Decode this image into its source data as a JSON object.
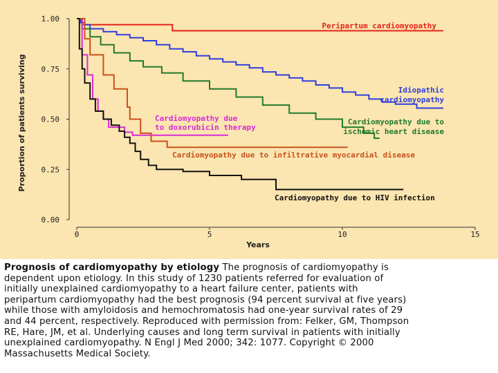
{
  "chart_data": {
    "type": "line",
    "step": true,
    "xlabel": "Years",
    "ylabel": "Proportion of patients surviving",
    "xlim": [
      0,
      15
    ],
    "ylim": [
      0,
      1
    ],
    "xticks": [
      0,
      5,
      10,
      15
    ],
    "xtick_labels": [
      "0",
      "5",
      "10",
      "15"
    ],
    "yticks": [
      0,
      0.25,
      0.5,
      0.75,
      1
    ],
    "ytick_labels": [
      "0.00",
      "0.25",
      "0.50",
      "0.75",
      "1.00"
    ],
    "grid": false,
    "legend": "none (series labeled directly on plot)",
    "background_color": "#fbe5b0",
    "series": [
      {
        "name": "Peripartum cardiomyopathy",
        "color": "#e3231b",
        "points": [
          [
            0,
            1
          ],
          [
            0.2,
            1
          ],
          [
            0.2,
            0.97
          ],
          [
            3.6,
            0.97
          ],
          [
            3.6,
            0.94
          ],
          [
            13.8,
            0.94
          ]
        ]
      },
      {
        "name": "Idiopathic cardiomyopathy",
        "color": "#2f3fdc",
        "points": [
          [
            0,
            1
          ],
          [
            0.15,
            0.98
          ],
          [
            0.3,
            0.97
          ],
          [
            0.5,
            0.95
          ],
          [
            1,
            0.935
          ],
          [
            1.5,
            0.92
          ],
          [
            2,
            0.905
          ],
          [
            2.5,
            0.89
          ],
          [
            3,
            0.87
          ],
          [
            3.5,
            0.85
          ],
          [
            4,
            0.835
          ],
          [
            4.5,
            0.815
          ],
          [
            5,
            0.8
          ],
          [
            5.5,
            0.785
          ],
          [
            6,
            0.77
          ],
          [
            6.5,
            0.755
          ],
          [
            7,
            0.735
          ],
          [
            7.5,
            0.72
          ],
          [
            8,
            0.705
          ],
          [
            8.5,
            0.69
          ],
          [
            9,
            0.67
          ],
          [
            9.5,
            0.655
          ],
          [
            10,
            0.635
          ],
          [
            10.5,
            0.62
          ],
          [
            11,
            0.6
          ],
          [
            11.5,
            0.585
          ],
          [
            12,
            0.575
          ],
          [
            12.8,
            0.555
          ],
          [
            13.8,
            0.555
          ]
        ]
      },
      {
        "name": "Cardiomyopathy due to ischemic heart disease",
        "color": "#207a2c",
        "points": [
          [
            0,
            1
          ],
          [
            0.2,
            0.95
          ],
          [
            0.5,
            0.91
          ],
          [
            0.9,
            0.87
          ],
          [
            1.4,
            0.83
          ],
          [
            2,
            0.79
          ],
          [
            2.5,
            0.76
          ],
          [
            3.2,
            0.73
          ],
          [
            4,
            0.69
          ],
          [
            5,
            0.65
          ],
          [
            6,
            0.61
          ],
          [
            7,
            0.57
          ],
          [
            8,
            0.53
          ],
          [
            9,
            0.5
          ],
          [
            10,
            0.46
          ],
          [
            10.8,
            0.43
          ],
          [
            11.2,
            0.405
          ],
          [
            11.4,
            0.405
          ]
        ]
      },
      {
        "name": "Cardiomyopathy due to doxorubicin therapy",
        "color": "#d92bd6",
        "points": [
          [
            0,
            1
          ],
          [
            0.2,
            0.82
          ],
          [
            0.4,
            0.72
          ],
          [
            0.6,
            0.6
          ],
          [
            0.8,
            0.54
          ],
          [
            1,
            0.5
          ],
          [
            1.2,
            0.46
          ],
          [
            1.8,
            0.435
          ],
          [
            2.1,
            0.42
          ],
          [
            5.7,
            0.42
          ]
        ]
      },
      {
        "name": "Cardiomyopathy due to infiltrative myocardial disease",
        "color": "#c8511c",
        "points": [
          [
            0,
            1
          ],
          [
            0.3,
            0.9
          ],
          [
            0.5,
            0.82
          ],
          [
            1,
            0.72
          ],
          [
            1.4,
            0.65
          ],
          [
            1.9,
            0.56
          ],
          [
            2,
            0.5
          ],
          [
            2.4,
            0.43
          ],
          [
            2.8,
            0.39
          ],
          [
            3.4,
            0.36
          ],
          [
            10.2,
            0.36
          ]
        ]
      },
      {
        "name": "Cardiomyopathy due to HIV infection",
        "color": "#111111",
        "points": [
          [
            0,
            1
          ],
          [
            0.1,
            0.85
          ],
          [
            0.2,
            0.75
          ],
          [
            0.3,
            0.68
          ],
          [
            0.5,
            0.6
          ],
          [
            0.7,
            0.54
          ],
          [
            1,
            0.5
          ],
          [
            1.3,
            0.47
          ],
          [
            1.6,
            0.44
          ],
          [
            1.8,
            0.41
          ],
          [
            2,
            0.38
          ],
          [
            2.2,
            0.34
          ],
          [
            2.4,
            0.3
          ],
          [
            2.7,
            0.27
          ],
          [
            3,
            0.25
          ],
          [
            4,
            0.24
          ],
          [
            5,
            0.22
          ],
          [
            6.2,
            0.2
          ],
          [
            7.5,
            0.15
          ],
          [
            12.3,
            0.15
          ]
        ]
      }
    ]
  },
  "caption": {
    "title": "Prognosis of cardiomyopathy by etiology",
    "body_first_line": " The prognosis of cardiomyopathy is",
    "body_rest": "dependent upon etiology. In this study of 1230 patients referred for evaluation of\ninitially unexplained cardiomyopathy to a heart failure center, patients with\nperipartum cardiomyopathy had the best prognosis (94 percent survival at five years)\nwhile those with amyloidosis and hemochromatosis had one-year survival rates of 29\nand 44 percent, respectively. Reproduced with permission from: Felker, GM, Thompson\nRE, Hare, JM, et al. Underlying causes and long term survival in patients with initially\nunexplained cardiomyopathy. N Engl J Med 2000; 342: 1077. Copyright © 2000\nMassachusetts Medical Society."
  }
}
